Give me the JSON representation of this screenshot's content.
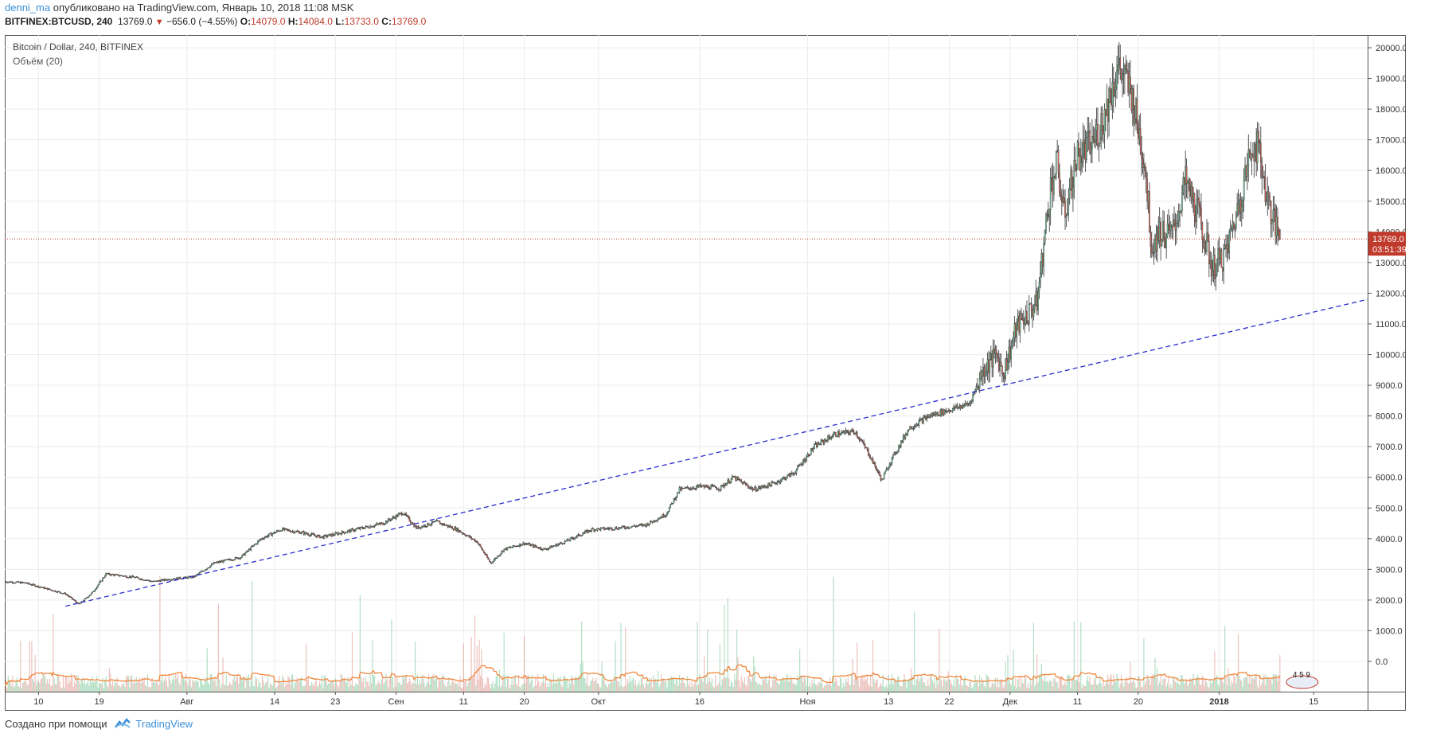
{
  "header": {
    "author": "denni_ma",
    "published": "опубликовано на TradingView.com, Январь 10, 2018 11:08 MSK",
    "symbol": "BITFINEX:BTCUSD, 240",
    "last": "13769.0",
    "change": "−656.0 (−4.55%)",
    "o_label": "O:",
    "o_value": "14079.0",
    "h_label": "H:",
    "h_value": "14084.0",
    "l_label": "L:",
    "l_value": "13733.0",
    "c_label": "C:",
    "c_value": "13769.0"
  },
  "legend": {
    "title": "Bitcoin / Dollar, 240, BITFINEX",
    "volume": "Объём (20)"
  },
  "price_label": {
    "price": "13769.0",
    "countdown": "03:51:39"
  },
  "logo_text": "4 5 9",
  "footer": {
    "created": "Создано при помощи",
    "brand": "TradingView"
  },
  "colors": {
    "up": "#26a69a",
    "down": "#c0392b",
    "trendline": "#2c2ccf",
    "volume_ma": "#f0883e",
    "price_line": "#c0392b"
  },
  "chart_data": {
    "type": "candlestick",
    "ylim": [
      0,
      20000
    ],
    "y_ticks": [
      0,
      1000,
      2000,
      3000,
      4000,
      5000,
      6000,
      7000,
      8000,
      9000,
      10000,
      11000,
      12000,
      13000,
      14000,
      15000,
      16000,
      17000,
      18000,
      19000,
      20000
    ],
    "y_tick_labels": [
      "0.0",
      "1000.0",
      "2000.0",
      "3000.0",
      "4000.0",
      "5000.0",
      "6000.0",
      "7000.0",
      "8000.0",
      "9000.0",
      "10000.0",
      "11000.0",
      "12000.0",
      "13000.0",
      "14000.0",
      "15000.0",
      "16000.0",
      "17000.0",
      "18000.0",
      "19000.0",
      "20000.0"
    ],
    "x_ticks": [
      {
        "date": "2017-07-10",
        "label": "10"
      },
      {
        "date": "2017-07-19",
        "label": "19"
      },
      {
        "date": "2017-08-01",
        "label": "Авг"
      },
      {
        "date": "2017-08-14",
        "label": "14"
      },
      {
        "date": "2017-08-23",
        "label": "23"
      },
      {
        "date": "2017-09-01",
        "label": "Сен"
      },
      {
        "date": "2017-09-11",
        "label": "11"
      },
      {
        "date": "2017-09-20",
        "label": "20"
      },
      {
        "date": "2017-10-01",
        "label": "Окт"
      },
      {
        "date": "2017-10-16",
        "label": "16"
      },
      {
        "date": "2017-11-01",
        "label": "Ноя"
      },
      {
        "date": "2017-11-13",
        "label": "13"
      },
      {
        "date": "2017-11-22",
        "label": "22"
      },
      {
        "date": "2017-12-01",
        "label": "Дек"
      },
      {
        "date": "2017-12-11",
        "label": "11"
      },
      {
        "date": "2017-12-20",
        "label": "20"
      },
      {
        "date": "2018-01-01",
        "label": "2018"
      },
      {
        "date": "2018-01-15",
        "label": "15"
      }
    ],
    "x_range": [
      "2017-07-05",
      "2018-01-23"
    ],
    "price_series": [
      {
        "date": "2017-07-05",
        "close": 2600
      },
      {
        "date": "2017-07-08",
        "close": 2560
      },
      {
        "date": "2017-07-11",
        "close": 2380
      },
      {
        "date": "2017-07-14",
        "close": 2200
      },
      {
        "date": "2017-07-16",
        "close": 1860
      },
      {
        "date": "2017-07-18",
        "close": 2250
      },
      {
        "date": "2017-07-20",
        "close": 2850
      },
      {
        "date": "2017-07-24",
        "close": 2750
      },
      {
        "date": "2017-07-27",
        "close": 2600
      },
      {
        "date": "2017-07-30",
        "close": 2700
      },
      {
        "date": "2017-08-02",
        "close": 2750
      },
      {
        "date": "2017-08-05",
        "close": 3200
      },
      {
        "date": "2017-08-09",
        "close": 3400
      },
      {
        "date": "2017-08-12",
        "close": 4000
      },
      {
        "date": "2017-08-15",
        "close": 4300
      },
      {
        "date": "2017-08-18",
        "close": 4200
      },
      {
        "date": "2017-08-21",
        "close": 4050
      },
      {
        "date": "2017-08-24",
        "close": 4200
      },
      {
        "date": "2017-08-27",
        "close": 4350
      },
      {
        "date": "2017-08-30",
        "close": 4500
      },
      {
        "date": "2017-09-02",
        "close": 4850
      },
      {
        "date": "2017-09-04",
        "close": 4350
      },
      {
        "date": "2017-09-07",
        "close": 4550
      },
      {
        "date": "2017-09-10",
        "close": 4300
      },
      {
        "date": "2017-09-13",
        "close": 3900
      },
      {
        "date": "2017-09-15",
        "close": 3200
      },
      {
        "date": "2017-09-17",
        "close": 3650
      },
      {
        "date": "2017-09-20",
        "close": 3850
      },
      {
        "date": "2017-09-23",
        "close": 3650
      },
      {
        "date": "2017-09-26",
        "close": 3900
      },
      {
        "date": "2017-09-30",
        "close": 4300
      },
      {
        "date": "2017-10-04",
        "close": 4350
      },
      {
        "date": "2017-10-08",
        "close": 4450
      },
      {
        "date": "2017-10-11",
        "close": 4800
      },
      {
        "date": "2017-10-13",
        "close": 5600
      },
      {
        "date": "2017-10-16",
        "close": 5700
      },
      {
        "date": "2017-10-19",
        "close": 5650
      },
      {
        "date": "2017-10-21",
        "close": 6000
      },
      {
        "date": "2017-10-24",
        "close": 5600
      },
      {
        "date": "2017-10-27",
        "close": 5800
      },
      {
        "date": "2017-10-30",
        "close": 6150
      },
      {
        "date": "2017-11-02",
        "close": 7000
      },
      {
        "date": "2017-11-05",
        "close": 7400
      },
      {
        "date": "2017-11-08",
        "close": 7500
      },
      {
        "date": "2017-11-10",
        "close": 6800
      },
      {
        "date": "2017-11-12",
        "close": 5900
      },
      {
        "date": "2017-11-13",
        "close": 6400
      },
      {
        "date": "2017-11-16",
        "close": 7600
      },
      {
        "date": "2017-11-19",
        "close": 8000
      },
      {
        "date": "2017-11-22",
        "close": 8200
      },
      {
        "date": "2017-11-25",
        "close": 8400
      },
      {
        "date": "2017-11-27",
        "close": 9500
      },
      {
        "date": "2017-11-29",
        "close": 10000
      },
      {
        "date": "2017-11-30",
        "close": 9400
      },
      {
        "date": "2017-12-02",
        "close": 10900
      },
      {
        "date": "2017-12-05",
        "close": 11700
      },
      {
        "date": "2017-12-07",
        "close": 15500
      },
      {
        "date": "2017-12-08",
        "close": 16200
      },
      {
        "date": "2017-12-09",
        "close": 14500
      },
      {
        "date": "2017-12-11",
        "close": 16500
      },
      {
        "date": "2017-12-13",
        "close": 16800
      },
      {
        "date": "2017-12-15",
        "close": 17800
      },
      {
        "date": "2017-12-17",
        "close": 19400
      },
      {
        "date": "2017-12-19",
        "close": 18500
      },
      {
        "date": "2017-12-21",
        "close": 16200
      },
      {
        "date": "2017-12-22",
        "close": 13500
      },
      {
        "date": "2017-12-23",
        "close": 14000
      },
      {
        "date": "2017-12-25",
        "close": 13900
      },
      {
        "date": "2017-12-27",
        "close": 15600
      },
      {
        "date": "2017-12-29",
        "close": 14500
      },
      {
        "date": "2017-12-31",
        "close": 12800
      },
      {
        "date": "2018-01-02",
        "close": 13300
      },
      {
        "date": "2018-01-04",
        "close": 15000
      },
      {
        "date": "2018-01-06",
        "close": 16900
      },
      {
        "date": "2018-01-07",
        "close": 16600
      },
      {
        "date": "2018-01-08",
        "close": 15200
      },
      {
        "date": "2018-01-09",
        "close": 14400
      },
      {
        "date": "2018-01-10",
        "close": 13769
      }
    ],
    "trendline": {
      "start": {
        "date": "2017-07-14",
        "price": 1800
      },
      "end": {
        "date": "2018-01-23",
        "price": 11800
      },
      "style": "dashed"
    },
    "last_price": 13769,
    "volume_scale_max": 4500,
    "volume_ma_period": 20
  }
}
